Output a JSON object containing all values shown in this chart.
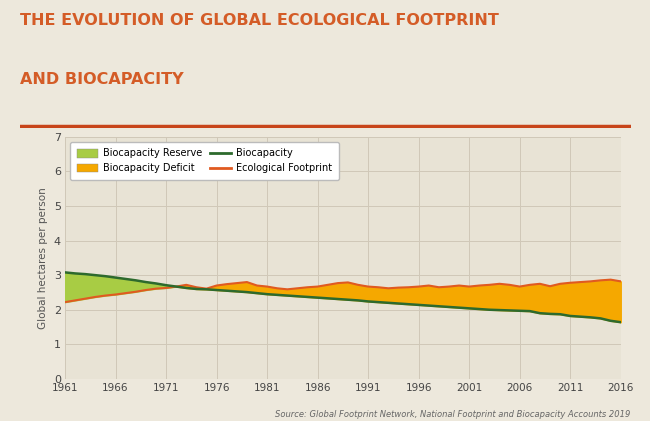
{
  "title_line1": "THE EVOLUTION OF GLOBAL ECOLOGICAL FOOTPRINT",
  "title_line2": "AND BIOCAPACITY",
  "title_color": "#D45C27",
  "title_fontsize": 11.5,
  "bg_color": "#EDE8DC",
  "plot_bg_color": "#E8E3D5",
  "grid_color": "#D0C8B8",
  "ylabel": "Global hectares per person",
  "ylabel_fontsize": 7.5,
  "source_text": "Source: Global Footprint Network, National Footprint and Biocapacity Accounts 2019",
  "years": [
    1961,
    1962,
    1963,
    1964,
    1965,
    1966,
    1967,
    1968,
    1969,
    1970,
    1971,
    1972,
    1973,
    1974,
    1975,
    1976,
    1977,
    1978,
    1979,
    1980,
    1981,
    1982,
    1983,
    1984,
    1985,
    1986,
    1987,
    1988,
    1989,
    1990,
    1991,
    1992,
    1993,
    1994,
    1995,
    1996,
    1997,
    1998,
    1999,
    2000,
    2001,
    2002,
    2003,
    2004,
    2005,
    2006,
    2007,
    2008,
    2009,
    2010,
    2011,
    2012,
    2013,
    2014,
    2015,
    2016
  ],
  "biocapacity": [
    3.08,
    3.05,
    3.03,
    3.0,
    2.97,
    2.93,
    2.89,
    2.85,
    2.8,
    2.76,
    2.71,
    2.67,
    2.63,
    2.6,
    2.59,
    2.57,
    2.55,
    2.53,
    2.51,
    2.48,
    2.45,
    2.43,
    2.41,
    2.39,
    2.37,
    2.35,
    2.33,
    2.31,
    2.29,
    2.27,
    2.24,
    2.22,
    2.2,
    2.18,
    2.16,
    2.14,
    2.12,
    2.1,
    2.08,
    2.06,
    2.04,
    2.02,
    2.0,
    1.99,
    1.98,
    1.97,
    1.96,
    1.9,
    1.88,
    1.87,
    1.82,
    1.8,
    1.78,
    1.75,
    1.68,
    1.64
  ],
  "footprint": [
    2.22,
    2.27,
    2.32,
    2.37,
    2.41,
    2.44,
    2.48,
    2.52,
    2.57,
    2.61,
    2.63,
    2.67,
    2.72,
    2.65,
    2.61,
    2.7,
    2.74,
    2.77,
    2.8,
    2.7,
    2.67,
    2.62,
    2.59,
    2.62,
    2.65,
    2.67,
    2.72,
    2.77,
    2.79,
    2.72,
    2.67,
    2.65,
    2.62,
    2.64,
    2.65,
    2.67,
    2.7,
    2.65,
    2.67,
    2.7,
    2.67,
    2.7,
    2.72,
    2.75,
    2.72,
    2.67,
    2.72,
    2.75,
    2.68,
    2.75,
    2.78,
    2.8,
    2.82,
    2.85,
    2.87,
    2.82
  ],
  "biocapacity_color": "#2D6A2D",
  "footprint_color": "#E05A20",
  "reserve_color": "#A8CC44",
  "deficit_color": "#F5A800",
  "ylim": [
    0,
    7
  ],
  "yticks": [
    0,
    1,
    2,
    3,
    4,
    5,
    6,
    7
  ],
  "xtick_years": [
    1961,
    1966,
    1971,
    1976,
    1981,
    1986,
    1991,
    1996,
    2001,
    2006,
    2011,
    2016
  ],
  "separator_color": "#C8451A",
  "legend_fontsize": 7.0
}
